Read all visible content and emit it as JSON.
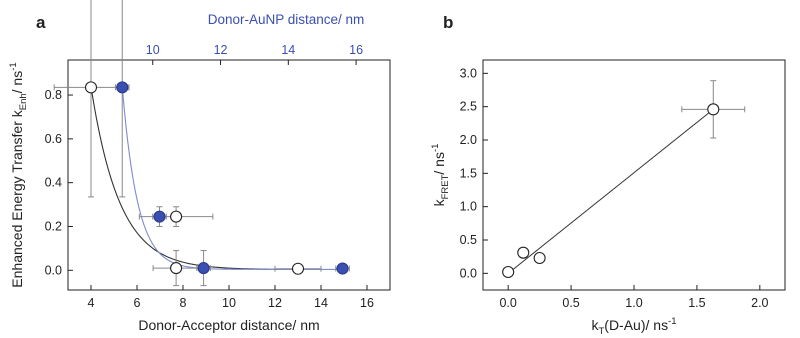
{
  "panels": [
    {
      "id": "a",
      "letter": "a",
      "ylabel_main": "Enhanced Energy Transfer k",
      "ylabel_sub": "Enh",
      "ylabel_unit": "/ ns",
      "ylabel_sup": "-1",
      "xlabel": "Donor-Acceptor distance/ nm",
      "top_xlabel": "Donor-AuNP distance/ nm",
      "x_ticks": [
        "4",
        "6",
        "8",
        "10",
        "12",
        "14",
        "16"
      ],
      "top_ticks": [
        "10",
        "12",
        "14",
        "16"
      ],
      "y_ticks": [
        "0.0",
        "0.2",
        "0.4",
        "0.6",
        "0.8"
      ]
    },
    {
      "id": "b",
      "letter": "b",
      "ylabel_main": "k",
      "ylabel_sub": "FRET",
      "ylabel_unit": "/ ns",
      "ylabel_sup": "-1",
      "xlabel_main": "k",
      "xlabel_sub": "T",
      "xlabel_rest": "(D-Au)/ ns",
      "xlabel_sup": "-1",
      "x_ticks": [
        "0.0",
        "0.5",
        "1.0",
        "1.5",
        "2.0"
      ],
      "y_ticks": [
        "0.0",
        "0.5",
        "1.0",
        "1.5",
        "2.0",
        "2.5",
        "3.0"
      ]
    }
  ],
  "colors": {
    "axis": "#222222",
    "blue": "#3b4fb0",
    "marker_fill": "#ffffff",
    "line": "#333333"
  },
  "chart_data": [
    {
      "panel": "a",
      "type": "scatter",
      "xlabel": "Donor-Acceptor distance/ nm",
      "x2label": "Donor-AuNP distance/ nm",
      "ylabel": "Enhanced Energy Transfer kEnh / ns-1",
      "xlim": [
        3,
        17
      ],
      "ylim": [
        -0.09,
        0.96
      ],
      "x2lim": [
        7.5,
        17
      ],
      "series": [
        {
          "axis": "bottom",
          "marker": "open-circle",
          "points": [
            {
              "x": 4.0,
              "y": 0.835,
              "xerr": 1.6,
              "yerr": 0.5
            },
            {
              "x": 7.7,
              "y": 0.245,
              "xerr": 1.6,
              "yerr": 0.045
            },
            {
              "x": 7.7,
              "y": 0.01,
              "xerr": 1.0,
              "yerr": 0.08
            },
            {
              "x": 13.0,
              "y": 0.007,
              "xerr": 1.0,
              "yerr": 0.015
            }
          ],
          "fit": "exponential decay"
        },
        {
          "axis": "top",
          "marker": "filled-circle",
          "color": "#3b4fb0",
          "points": [
            {
              "x": 9.1,
              "y": 0.835,
              "xerr": 0.2,
              "yerr": 0.5
            },
            {
              "x": 10.2,
              "y": 0.245,
              "xerr": 0.2,
              "yerr": 0.045
            },
            {
              "x": 11.5,
              "y": 0.01,
              "xerr": 0.2,
              "yerr": 0.08
            },
            {
              "x": 15.6,
              "y": 0.008,
              "xerr": 0.2,
              "yerr": 0.015
            }
          ],
          "fit": "exponential decay"
        }
      ]
    },
    {
      "panel": "b",
      "type": "scatter",
      "xlabel": "kT(D-Au)/ ns-1",
      "ylabel": "kFRET/ ns-1",
      "xlim": [
        -0.2,
        2.2
      ],
      "ylim": [
        -0.25,
        3.2
      ],
      "series": [
        {
          "marker": "open-circle",
          "points": [
            {
              "x": 0.0,
              "y": 0.02,
              "xerr": 0.03,
              "yerr": 0.04
            },
            {
              "x": 0.12,
              "y": 0.31,
              "xerr": 0.0,
              "yerr": 0.0
            },
            {
              "x": 0.25,
              "y": 0.23,
              "xerr": 0.0,
              "yerr": 0.0
            },
            {
              "x": 1.63,
              "y": 2.46,
              "xerr": 0.25,
              "yerr": 0.43
            }
          ],
          "fit": "linear",
          "fit_line": {
            "x0": 0.0,
            "y0": 0.0,
            "x1": 1.63,
            "y1": 2.46
          }
        }
      ]
    }
  ]
}
